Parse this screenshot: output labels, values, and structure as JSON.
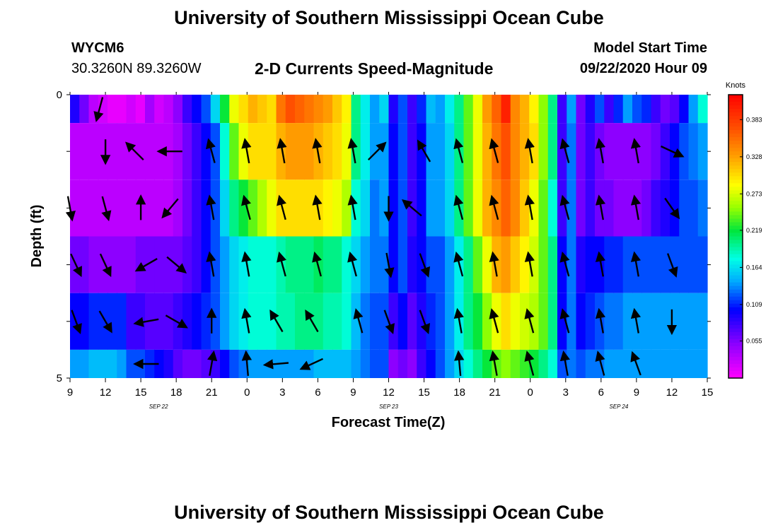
{
  "header": {
    "title_top": "University of Southern Mississippi Ocean Cube",
    "title_bottom": "University of Southern Mississippi Ocean Cube",
    "station_id": "WYCM6",
    "coordinates": "30.3260N 89.3260W",
    "plot_title": "2-D Currents Speed-Magnitude",
    "model_start_label": "Model Start Time",
    "model_start_value": "09/22/2020 Hour 09"
  },
  "chart_data": {
    "type": "heatmap",
    "xlabel": "Forecast Time(Z)",
    "ylabel": "Depth (ft)",
    "x_ticks": [
      "9",
      "12",
      "15",
      "18",
      "21",
      "0",
      "3",
      "6",
      "9",
      "12",
      "15",
      "18",
      "21",
      "0",
      "3",
      "6",
      "9",
      "12",
      "15"
    ],
    "x_tick_hours": [
      0,
      3,
      6,
      9,
      12,
      15,
      18,
      21,
      24,
      27,
      30,
      33,
      36,
      39,
      42,
      45,
      48,
      51,
      54
    ],
    "date_labels": [
      {
        "text": "SEP 22",
        "hour": 7.5
      },
      {
        "text": "SEP 23",
        "hour": 27
      },
      {
        "text": "SEP 24",
        "hour": 46.5
      }
    ],
    "y_ticks": [
      "0",
      "5"
    ],
    "ylim": [
      0,
      5
    ],
    "xlim_hours": [
      0,
      54
    ],
    "colorbar": {
      "unit_label": "Knots",
      "tick_labels": [
        "0.383",
        "0.328",
        "0.273",
        "0.219",
        "0.164",
        "0.109",
        "0.055"
      ],
      "tick_values": [
        0.383,
        0.328,
        0.273,
        0.219,
        0.164,
        0.109,
        0.055
      ],
      "range": [
        0.0,
        0.42
      ]
    },
    "rows": [
      {
        "depth_top": 0.0,
        "depth_bottom": 0.5,
        "speed": [
          0.09,
          0.06,
          0.03,
          0.02,
          0.01,
          0.01,
          0.02,
          0.01,
          0.04,
          0.02,
          0.03,
          0.05,
          0.08,
          0.1,
          0.12,
          0.16,
          0.22,
          0.28,
          0.3,
          0.32,
          0.31,
          0.3,
          0.35,
          0.37,
          0.36,
          0.35,
          0.34,
          0.33,
          0.31,
          0.29,
          0.2,
          0.17,
          0.14,
          0.16,
          0.09,
          0.12,
          0.08,
          0.11,
          0.15,
          0.14,
          0.17,
          0.2,
          0.24,
          0.28,
          0.33,
          0.36,
          0.4,
          0.34,
          0.32,
          0.29,
          0.25,
          0.2,
          0.08,
          0.14,
          0.06,
          0.09,
          0.12,
          0.08,
          0.11,
          0.14,
          0.12,
          0.11,
          0.08,
          0.06,
          0.07,
          0.1,
          0.14,
          0.18
        ],
        "arrows": [
          [
            2.5,
            195
          ]
        ]
      },
      {
        "depth_top": 0.5,
        "depth_bottom": 1.5,
        "speed": [
          0.03,
          0.03,
          0.03,
          0.03,
          0.03,
          0.03,
          0.03,
          0.03,
          0.03,
          0.03,
          0.03,
          0.04,
          0.06,
          0.08,
          0.1,
          0.12,
          0.18,
          0.24,
          0.28,
          0.3,
          0.3,
          0.3,
          0.32,
          0.33,
          0.33,
          0.33,
          0.32,
          0.31,
          0.3,
          0.28,
          0.2,
          0.17,
          0.14,
          0.14,
          0.1,
          0.12,
          0.08,
          0.1,
          0.14,
          0.14,
          0.16,
          0.2,
          0.24,
          0.28,
          0.32,
          0.35,
          0.37,
          0.34,
          0.32,
          0.3,
          0.25,
          0.2,
          0.08,
          0.13,
          0.06,
          0.08,
          0.06,
          0.05,
          0.05,
          0.05,
          0.05,
          0.05,
          0.06,
          0.08,
          0.1,
          0.12,
          0.13,
          0.14
        ],
        "arrows": [
          [
            3,
            180
          ],
          [
            5.5,
            -45
          ],
          [
            8.5,
            -90
          ],
          [
            12,
            -15
          ],
          [
            15,
            -10
          ],
          [
            18,
            -10
          ],
          [
            21,
            -10
          ],
          [
            24,
            -10
          ],
          [
            26,
            45
          ],
          [
            30,
            -30
          ],
          [
            33,
            -15
          ],
          [
            36,
            -15
          ],
          [
            39,
            -10
          ],
          [
            42,
            -15
          ],
          [
            45,
            -10
          ],
          [
            48,
            -10
          ],
          [
            51,
            115
          ]
        ]
      },
      {
        "depth_top": 1.5,
        "depth_bottom": 2.5,
        "speed": [
          0.03,
          0.03,
          0.03,
          0.03,
          0.03,
          0.03,
          0.03,
          0.03,
          0.03,
          0.03,
          0.03,
          0.04,
          0.06,
          0.08,
          0.1,
          0.12,
          0.16,
          0.2,
          0.22,
          0.24,
          0.26,
          0.28,
          0.3,
          0.3,
          0.3,
          0.3,
          0.3,
          0.29,
          0.28,
          0.26,
          0.18,
          0.16,
          0.13,
          0.14,
          0.1,
          0.12,
          0.08,
          0.1,
          0.14,
          0.14,
          0.16,
          0.2,
          0.24,
          0.28,
          0.32,
          0.34,
          0.36,
          0.34,
          0.31,
          0.28,
          0.24,
          0.18,
          0.08,
          0.13,
          0.06,
          0.08,
          0.06,
          0.06,
          0.05,
          0.05,
          0.05,
          0.06,
          0.08,
          0.09,
          0.1,
          0.12,
          0.12,
          0.13
        ],
        "arrows": [
          [
            0,
            170
          ],
          [
            3,
            165
          ],
          [
            6,
            0
          ],
          [
            8.5,
            -140
          ],
          [
            12,
            -10
          ],
          [
            15,
            -15
          ],
          [
            18,
            -15
          ],
          [
            21,
            -10
          ],
          [
            24,
            -10
          ],
          [
            27,
            180
          ],
          [
            29,
            -50
          ],
          [
            33,
            -15
          ],
          [
            36,
            -15
          ],
          [
            39,
            -10
          ],
          [
            42,
            -15
          ],
          [
            45,
            -10
          ],
          [
            48,
            -10
          ],
          [
            51,
            145
          ]
        ]
      },
      {
        "depth_top": 2.5,
        "depth_bottom": 3.5,
        "speed": [
          0.06,
          0.06,
          0.05,
          0.05,
          0.05,
          0.05,
          0.05,
          0.06,
          0.06,
          0.06,
          0.06,
          0.06,
          0.07,
          0.08,
          0.1,
          0.12,
          0.14,
          0.16,
          0.17,
          0.18,
          0.18,
          0.18,
          0.19,
          0.2,
          0.2,
          0.2,
          0.21,
          0.2,
          0.2,
          0.18,
          0.16,
          0.14,
          0.13,
          0.13,
          0.1,
          0.12,
          0.09,
          0.1,
          0.12,
          0.12,
          0.14,
          0.17,
          0.2,
          0.24,
          0.28,
          0.32,
          0.33,
          0.31,
          0.29,
          0.27,
          0.24,
          0.2,
          0.1,
          0.13,
          0.09,
          0.1,
          0.1,
          0.11,
          0.11,
          0.12,
          0.12,
          0.12,
          0.12,
          0.12,
          0.12,
          0.12,
          0.12,
          0.12
        ],
        "arrows": [
          [
            0.5,
            155
          ],
          [
            3,
            155
          ],
          [
            6.5,
            -120
          ],
          [
            9,
            130
          ],
          [
            12,
            -10
          ],
          [
            15,
            -10
          ],
          [
            18,
            -15
          ],
          [
            21,
            -15
          ],
          [
            24,
            -15
          ],
          [
            27,
            170
          ],
          [
            30,
            160
          ],
          [
            33,
            -15
          ],
          [
            36,
            -10
          ],
          [
            39,
            -10
          ],
          [
            42,
            -15
          ],
          [
            45,
            -10
          ],
          [
            48,
            -10
          ],
          [
            51,
            160
          ]
        ]
      },
      {
        "depth_top": 3.5,
        "depth_bottom": 4.5,
        "speed": [
          0.1,
          0.1,
          0.11,
          0.11,
          0.11,
          0.11,
          0.08,
          0.08,
          0.07,
          0.07,
          0.07,
          0.08,
          0.09,
          0.1,
          0.11,
          0.12,
          0.14,
          0.16,
          0.17,
          0.18,
          0.18,
          0.18,
          0.19,
          0.19,
          0.2,
          0.2,
          0.2,
          0.19,
          0.19,
          0.18,
          0.15,
          0.13,
          0.12,
          0.12,
          0.08,
          0.1,
          0.07,
          0.09,
          0.11,
          0.12,
          0.14,
          0.17,
          0.2,
          0.22,
          0.25,
          0.28,
          0.3,
          0.28,
          0.27,
          0.26,
          0.24,
          0.2,
          0.1,
          0.13,
          0.1,
          0.11,
          0.12,
          0.13,
          0.13,
          0.14,
          0.14,
          0.14,
          0.14,
          0.14,
          0.14,
          0.14,
          0.14,
          0.14
        ],
        "arrows": [
          [
            0.5,
            160
          ],
          [
            3,
            150
          ],
          [
            6.5,
            -100
          ],
          [
            9,
            120
          ],
          [
            12,
            0
          ],
          [
            15,
            -10
          ],
          [
            17.5,
            -30
          ],
          [
            20.5,
            -30
          ],
          [
            24.5,
            -15
          ],
          [
            27,
            160
          ],
          [
            30,
            160
          ],
          [
            33,
            -10
          ],
          [
            36,
            -15
          ],
          [
            39,
            -15
          ],
          [
            42,
            -15
          ],
          [
            45,
            -10
          ],
          [
            48,
            -10
          ],
          [
            51,
            180
          ]
        ]
      },
      {
        "depth_top": 4.5,
        "depth_bottom": 5.0,
        "speed": [
          0.14,
          0.14,
          0.15,
          0.15,
          0.15,
          0.14,
          0.12,
          0.12,
          0.11,
          0.1,
          0.09,
          0.07,
          0.06,
          0.06,
          0.07,
          0.08,
          0.1,
          0.12,
          0.13,
          0.14,
          0.14,
          0.14,
          0.14,
          0.14,
          0.14,
          0.14,
          0.15,
          0.15,
          0.15,
          0.15,
          0.14,
          0.13,
          0.12,
          0.12,
          0.05,
          0.06,
          0.05,
          0.08,
          0.1,
          0.12,
          0.14,
          0.16,
          0.18,
          0.2,
          0.22,
          0.24,
          0.25,
          0.24,
          0.23,
          0.22,
          0.2,
          0.18,
          0.12,
          0.13,
          0.12,
          0.13,
          0.13,
          0.14,
          0.14,
          0.14,
          0.14,
          0.14,
          0.14,
          0.14,
          0.14,
          0.14,
          0.14,
          0.14
        ],
        "arrows": [
          [
            6.5,
            -90
          ],
          [
            12,
            10
          ],
          [
            15,
            -5
          ],
          [
            17.5,
            -95
          ],
          [
            20.5,
            -115
          ],
          [
            33,
            -5
          ],
          [
            36,
            -10
          ],
          [
            39,
            -15
          ],
          [
            42,
            -10
          ],
          [
            45,
            -15
          ],
          [
            48,
            -20
          ]
        ]
      }
    ]
  }
}
